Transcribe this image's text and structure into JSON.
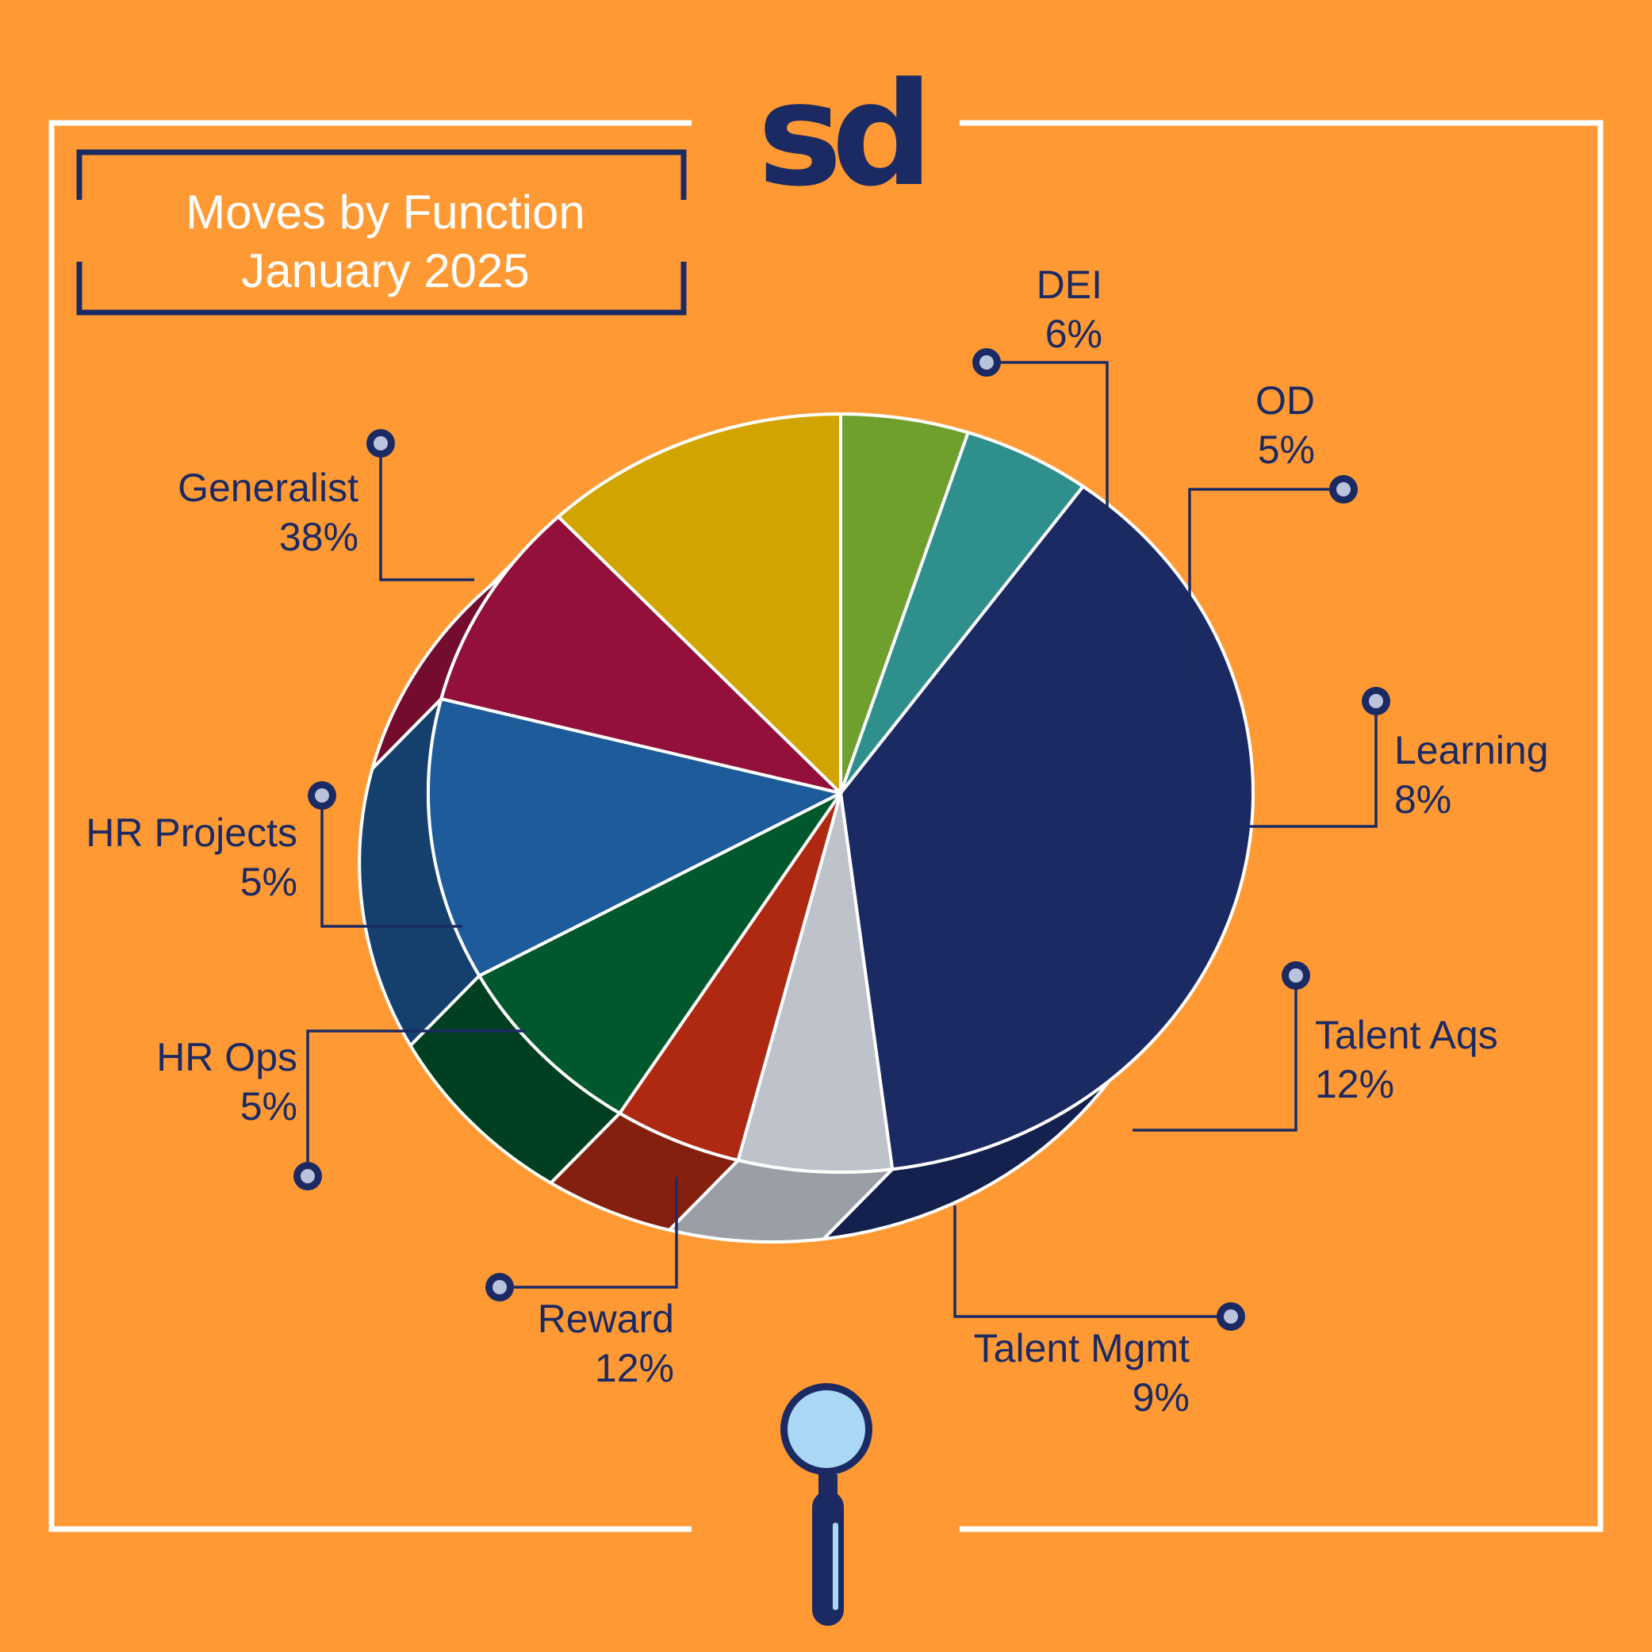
{
  "logo": {
    "text": "sd"
  },
  "title": {
    "line1": "Moves by Function",
    "line2": "January 2025"
  },
  "colors": {
    "background": "#FF9933",
    "frame": "#FFFFFF",
    "navy": "#1C2A63"
  },
  "chart_data": {
    "type": "pie",
    "title": "Moves by Function January 2025",
    "unit": "%",
    "slices": [
      {
        "label": "Generalist",
        "value": 38,
        "display": "38%",
        "color": "#1C2A63",
        "side": "#14204D"
      },
      {
        "label": "DEI",
        "value": 6,
        "display": "6%",
        "color": "#BEC2CB",
        "side": "#9A9EA6"
      },
      {
        "label": "OD",
        "value": 5,
        "display": "5%",
        "color": "#AE2812",
        "side": "#86200E"
      },
      {
        "label": "Learning",
        "value": 8,
        "display": "8%",
        "color": "#00582C",
        "side": "#003F20"
      },
      {
        "label": "Talent Aqs",
        "value": 12,
        "display": "12%",
        "color": "#1E5B9A",
        "side": "#15406E"
      },
      {
        "label": "Talent Mgmt",
        "value": 9,
        "display": "9%",
        "color": "#921039",
        "side": "#740D2D"
      },
      {
        "label": "Reward",
        "value": 12,
        "display": "12%",
        "color": "#D2A400",
        "side": "#8A7000"
      },
      {
        "label": "HR Ops",
        "value": 5,
        "display": "5%",
        "color": "#6FA02E",
        "side": "#4B6E1F"
      },
      {
        "label": "HR Projects",
        "value": 5,
        "display": "5%",
        "color": "#2E8F8C",
        "side": "#206866"
      }
    ]
  }
}
